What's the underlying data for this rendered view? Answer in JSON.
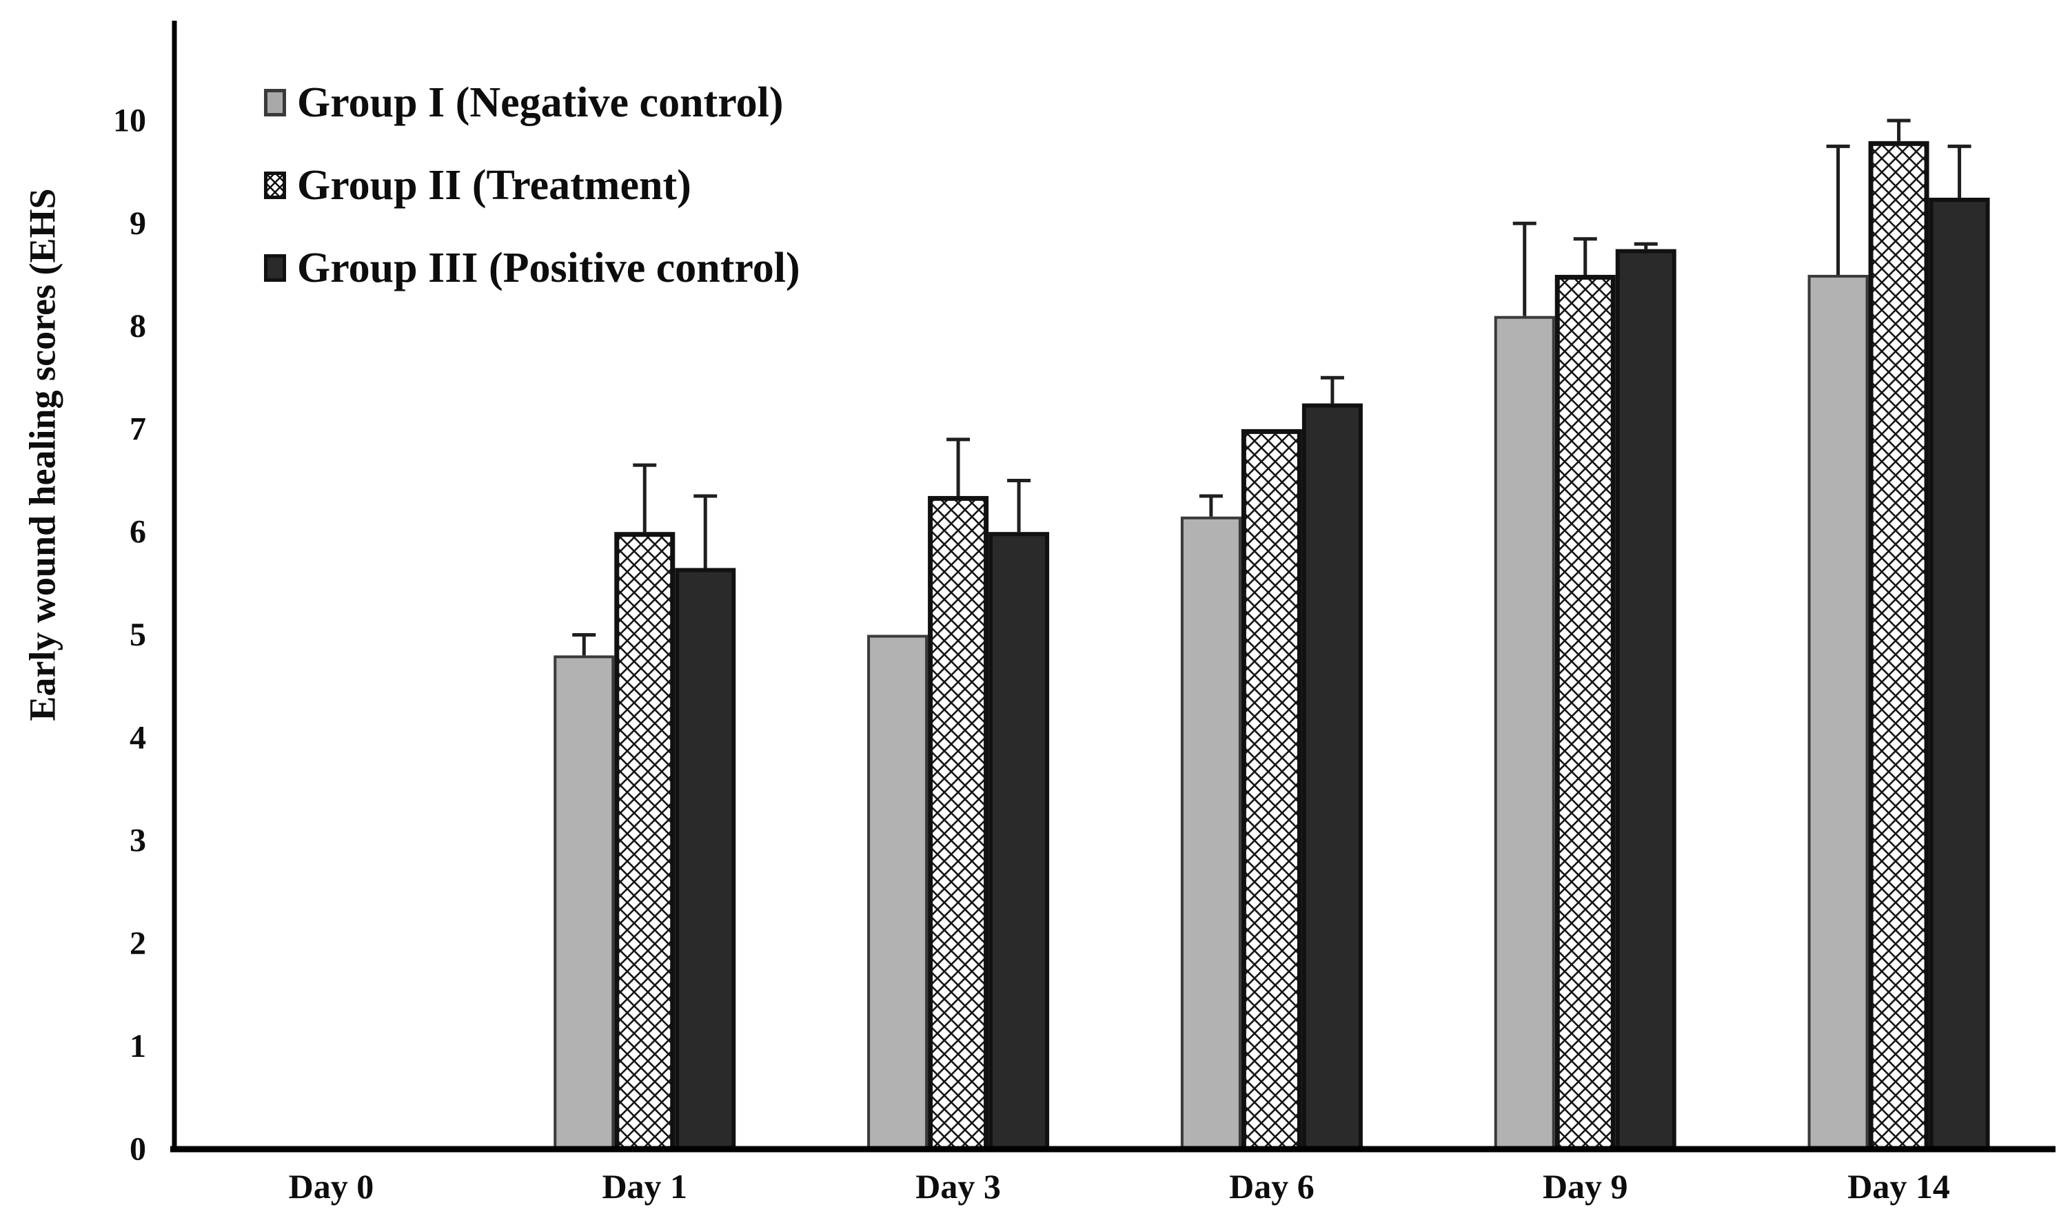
{
  "figure": {
    "background": "#ffffff",
    "ylabel": "Early wound healing scores (EHS",
    "legend": {
      "position": "top-left",
      "items": [
        {
          "label": "Group I (Negative control)",
          "swatch": "gray-solid",
          "color": "#a9a9a9"
        },
        {
          "label": "Group II (Treatment)",
          "swatch": "crosshatch",
          "color": "#ffffff"
        },
        {
          "label": "Group III (Positive control)",
          "swatch": "dark-solid",
          "color": "#2a2a2a"
        }
      ]
    }
  },
  "chart_data": {
    "type": "bar",
    "title": "",
    "xlabel": "",
    "ylabel": "Early wound healing scores (EHS",
    "ylim": [
      0,
      10
    ],
    "yticks": [
      0,
      1,
      2,
      3,
      4,
      5,
      6,
      7,
      8,
      9,
      10
    ],
    "grid": false,
    "legend_position": "top-left",
    "categories": [
      "Day 0",
      "Day 1",
      "Day 3",
      "Day 6",
      "Day 9",
      "Day 14"
    ],
    "series": [
      {
        "name": "Group I (Negative control)",
        "values": [
          0,
          4.8,
          5.0,
          6.15,
          8.1,
          8.5
        ],
        "errors_plus": [
          0,
          0.2,
          0,
          0.2,
          0.9,
          1.25
        ],
        "fill": "#b2b2b2",
        "stroke": "#3a3a3a",
        "pattern": "solid"
      },
      {
        "name": "Group II (Treatment)",
        "values": [
          0,
          6.0,
          6.35,
          7.0,
          8.5,
          9.8
        ],
        "errors_plus": [
          0,
          0.65,
          0.55,
          0,
          0.35,
          0.2
        ],
        "fill": "#ffffff",
        "stroke": "#111111",
        "pattern": "crosshatch"
      },
      {
        "name": "Group III (Positive control)",
        "values": [
          0,
          5.65,
          6.0,
          7.25,
          8.75,
          9.25
        ],
        "errors_plus": [
          0,
          0.7,
          0.5,
          0.25,
          0.05,
          0.5
        ],
        "fill": "#2a2a2a",
        "stroke": "#111111",
        "pattern": "solid"
      }
    ],
    "error_bar_color": "#1f1f1f",
    "axis_color": "#000000",
    "tick_label_color": "#0d0d0d"
  }
}
